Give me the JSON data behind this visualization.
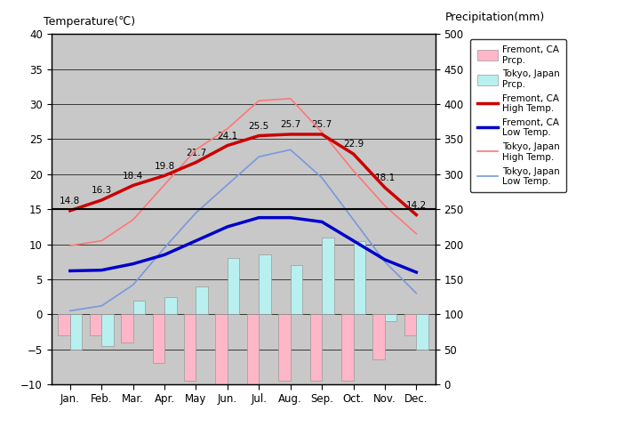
{
  "months": [
    "Jan.",
    "Feb.",
    "Mar.",
    "Apr.",
    "May",
    "Jun.",
    "Jul.",
    "Aug.",
    "Sep.",
    "Oct.",
    "Nov.",
    "Dec."
  ],
  "fremont_high": [
    14.8,
    16.3,
    18.4,
    19.8,
    21.7,
    24.1,
    25.5,
    25.7,
    25.7,
    22.9,
    18.1,
    14.2
  ],
  "fremont_low": [
    6.2,
    6.3,
    7.2,
    8.5,
    10.5,
    12.5,
    13.8,
    13.8,
    13.2,
    10.5,
    7.8,
    6.0
  ],
  "tokyo_high": [
    9.8,
    10.5,
    13.5,
    18.5,
    23.5,
    26.5,
    30.5,
    30.8,
    26.0,
    20.5,
    15.5,
    11.5
  ],
  "tokyo_low": [
    0.5,
    1.2,
    4.2,
    9.5,
    14.5,
    18.5,
    22.5,
    23.5,
    19.5,
    13.5,
    7.5,
    3.0
  ],
  "fremont_prcp_temp": [
    -3.0,
    -3.0,
    -4.0,
    -7.0,
    -9.5,
    -10.0,
    -10.0,
    -9.5,
    -9.5,
    -9.5,
    -6.5,
    -3.0
  ],
  "tokyo_prcp_temp": [
    -5.0,
    -4.5,
    2.0,
    2.5,
    4.0,
    8.0,
    8.5,
    7.0,
    11.0,
    10.5,
    -1.0,
    -5.0
  ],
  "fremont_high_labels": [
    "14.8",
    "16.3",
    "18.4",
    "19.8",
    "21.7",
    "24.1",
    "25.5",
    "25.7",
    "25.7",
    "22.9",
    "18.1",
    "14.2"
  ],
  "bg_color": "#c8c8c8",
  "fremont_high_color": "#cc0000",
  "fremont_low_color": "#0000cc",
  "tokyo_high_color": "#ff7777",
  "tokyo_low_color": "#7799dd",
  "fremont_prcp_color": "#ffb6c8",
  "tokyo_prcp_color": "#b8f0f0",
  "title_left": "Temperature(℃)",
  "title_right": "Precipitation(mm)",
  "ylim_left": [
    -10,
    40
  ],
  "ylim_right": [
    0,
    500
  ],
  "bar_width": 0.38,
  "hline_y": 15.0
}
